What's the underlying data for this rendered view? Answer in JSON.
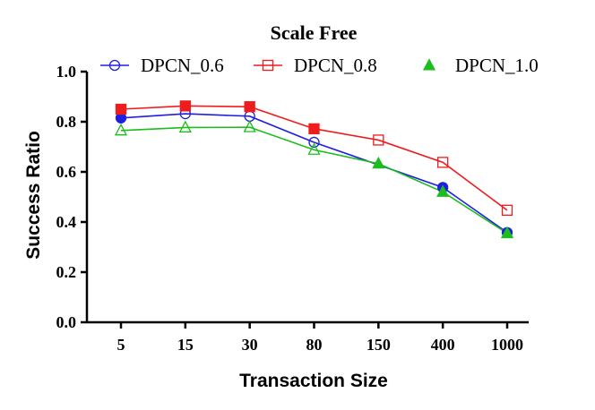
{
  "chart_data": {
    "type": "line",
    "title": "Scale Free",
    "xlabel": "Transaction Size",
    "ylabel": "Success Ratio",
    "categories": [
      "5",
      "15",
      "30",
      "80",
      "150",
      "400",
      "1000"
    ],
    "ylim": [
      0.0,
      1.0
    ],
    "yticks": [
      "0.0",
      "0.2",
      "0.4",
      "0.6",
      "0.8",
      "1.0"
    ],
    "legend_position": "top",
    "grid": false,
    "series": [
      {
        "name": "DPCN_0.6",
        "color": "#1f1fe0",
        "marker": "circle",
        "values": [
          0.815,
          0.832,
          0.822,
          0.718,
          null,
          0.538,
          0.358
        ],
        "filled": [
          true,
          false,
          false,
          false,
          false,
          true,
          true
        ]
      },
      {
        "name": "DPCN_0.8",
        "color": "#ee1c1c",
        "marker": "square",
        "values": [
          0.85,
          0.863,
          0.86,
          0.772,
          0.727,
          0.638,
          0.447
        ],
        "filled": [
          true,
          true,
          true,
          true,
          false,
          false,
          false
        ]
      },
      {
        "name": "DPCN_1.0",
        "color": "#1cbd1c",
        "marker": "triangle",
        "values": [
          0.765,
          0.777,
          0.778,
          0.688,
          0.633,
          0.52,
          0.355
        ],
        "filled": [
          false,
          false,
          false,
          false,
          true,
          true,
          true
        ]
      }
    ]
  }
}
